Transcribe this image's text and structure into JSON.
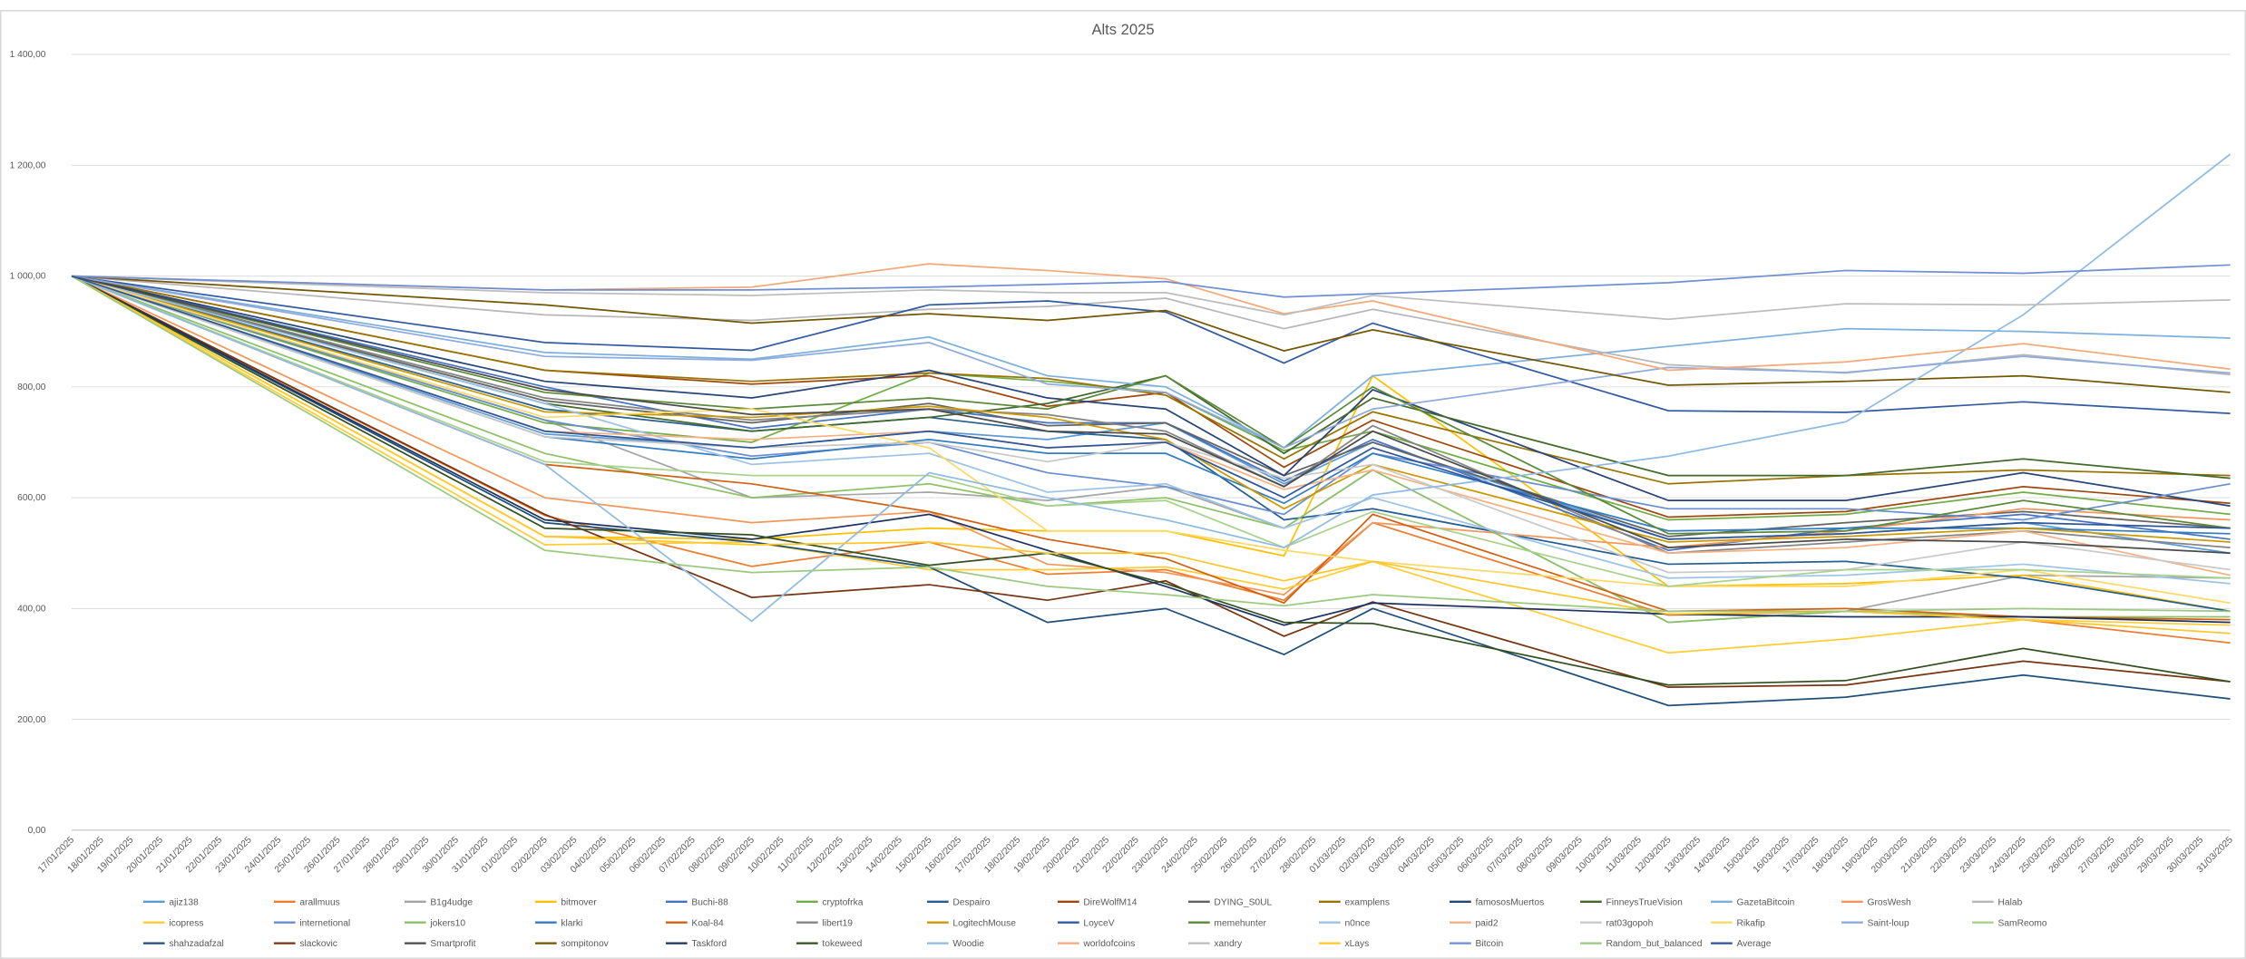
{
  "chart_data": {
    "type": "line",
    "title": "Alts 2025",
    "categories": [
      "17/01/2025",
      "18/01/2025",
      "19/01/2025",
      "20/01/2025",
      "21/01/2025",
      "22/01/2025",
      "23/01/2025",
      "24/01/2025",
      "25/01/2025",
      "26/01/2025",
      "27/01/2025",
      "28/01/2025",
      "29/01/2025",
      "30/01/2025",
      "31/01/2025",
      "01/02/2025",
      "02/02/2025",
      "03/02/2025",
      "04/02/2025",
      "05/02/2025",
      "06/02/2025",
      "07/02/2025",
      "08/02/2025",
      "09/02/2025",
      "10/02/2025",
      "11/02/2025",
      "12/02/2025",
      "13/02/2025",
      "14/02/2025",
      "15/02/2025",
      "16/02/2025",
      "17/02/2025",
      "18/02/2025",
      "19/02/2025",
      "20/02/2025",
      "21/02/2025",
      "22/02/2025",
      "23/02/2025",
      "24/02/2025",
      "25/02/2025",
      "26/02/2025",
      "27/02/2025",
      "28/02/2025",
      "01/03/2025",
      "02/03/2025",
      "03/03/2025",
      "04/03/2025",
      "05/03/2025",
      "06/03/2025",
      "07/03/2025",
      "08/03/2025",
      "09/03/2025",
      "10/03/2025",
      "11/03/2025",
      "12/03/2025",
      "13/03/2025",
      "14/03/2025",
      "15/03/2025",
      "16/03/2025",
      "17/03/2025",
      "18/03/2025",
      "19/03/2025",
      "20/03/2025",
      "21/03/2025",
      "22/03/2025",
      "23/03/2025",
      "24/03/2025",
      "25/03/2025",
      "26/03/2025",
      "27/03/2025",
      "28/03/2025",
      "29/03/2025",
      "30/03/2025",
      "31/03/2025"
    ],
    "x": [
      "17/01/2025",
      "02/02/2025",
      "09/02/2025",
      "15/02/2025",
      "19/02/2025",
      "23/02/2025",
      "27/02/2025",
      "02/03/2025",
      "12/03/2025",
      "18/03/2025",
      "24/03/2025",
      "31/03/2025"
    ],
    "ylim": [
      0,
      1400
    ],
    "yticks": [
      {
        "value": 0,
        "label": "0,00"
      },
      {
        "value": 200,
        "label": "200,00"
      },
      {
        "value": 400,
        "label": "400,00"
      },
      {
        "value": 600,
        "label": "600,00"
      },
      {
        "value": 800,
        "label": "800,00"
      },
      {
        "value": 1000,
        "label": "1 000,00"
      },
      {
        "value": 1200,
        "label": "1 200,00"
      },
      {
        "value": 1400,
        "label": "1 400,00"
      }
    ],
    "grid": true,
    "legend": "bottom",
    "series": [
      {
        "name": "ajiz138",
        "color": "#5b9bd5",
        "values": [
          1000,
          715,
          690,
          720,
          705,
          735,
          625,
          700,
          525,
          535,
          555,
          500
        ]
      },
      {
        "name": "arallmuus",
        "color": "#ed7d31",
        "values": [
          1000,
          568,
          476,
          520,
          462,
          470,
          415,
          555,
          388,
          395,
          380,
          338
        ]
      },
      {
        "name": "B1g4udge",
        "color": "#a5a5a5",
        "values": [
          1000,
          740,
          600,
          610,
          595,
          620,
          545,
          650,
          375,
          395,
          460,
          455
        ]
      },
      {
        "name": "bitmover",
        "color": "#ffc000",
        "values": [
          1000,
          530,
          525,
          545,
          540,
          540,
          495,
          820,
          440,
          445,
          460,
          395
        ]
      },
      {
        "name": "Buchi-88",
        "color": "#4472c4",
        "values": [
          1000,
          800,
          725,
          760,
          735,
          735,
          630,
          705,
          505,
          545,
          570,
          525
        ]
      },
      {
        "name": "cryptofrka",
        "color": "#70ad47",
        "values": [
          1000,
          735,
          700,
          825,
          810,
          790,
          685,
          720,
          560,
          570,
          610,
          570
        ]
      },
      {
        "name": "Despairo",
        "color": "#255e91",
        "values": [
          1000,
          760,
          720,
          745,
          720,
          705,
          560,
          580,
          480,
          485,
          455,
          395
        ]
      },
      {
        "name": "DireWolfM14",
        "color": "#9e480e",
        "values": [
          1000,
          830,
          805,
          820,
          765,
          790,
          655,
          740,
          565,
          575,
          620,
          590
        ]
      },
      {
        "name": "DYING_S0UL",
        "color": "#636363",
        "values": [
          1000,
          775,
          735,
          770,
          730,
          735,
          640,
          700,
          530,
          555,
          575,
          545
        ]
      },
      {
        "name": "examplens",
        "color": "#997300",
        "values": [
          1000,
          830,
          810,
          825,
          815,
          785,
          670,
          755,
          625,
          640,
          650,
          640
        ]
      },
      {
        "name": "famososMuertos",
        "color": "#264478",
        "values": [
          1000,
          810,
          780,
          830,
          780,
          760,
          640,
          795,
          595,
          595,
          645,
          585
        ]
      },
      {
        "name": "FinneysTrueVision",
        "color": "#43682b",
        "values": [
          1000,
          770,
          720,
          745,
          770,
          820,
          680,
          780,
          640,
          640,
          670,
          635
        ]
      },
      {
        "name": "GazetaBitcoin",
        "color": "#7cafdd",
        "values": [
          1000,
          862,
          850,
          890,
          820,
          800,
          690,
          820,
          873,
          905,
          900,
          888
        ]
      },
      {
        "name": "GrosWesh",
        "color": "#f1975a",
        "values": [
          1000,
          600,
          555,
          575,
          480,
          465,
          425,
          555,
          510,
          540,
          580,
          560
        ]
      },
      {
        "name": "Halab",
        "color": "#b7b7b7",
        "values": [
          1000,
          930,
          920,
          940,
          945,
          960,
          905,
          940,
          840,
          825,
          858,
          822
        ]
      },
      {
        "name": "icopress",
        "color": "#ffcd33",
        "values": [
          1000,
          515,
          520,
          470,
          470,
          475,
          435,
          485,
          320,
          345,
          380,
          370
        ]
      },
      {
        "name": "internetional",
        "color": "#698ed0",
        "values": [
          1000,
          740,
          675,
          700,
          645,
          620,
          570,
          680,
          580,
          580,
          560,
          625
        ]
      },
      {
        "name": "jokers10",
        "color": "#8cc168",
        "values": [
          1000,
          680,
          600,
          625,
          585,
          600,
          545,
          650,
          375,
          395,
          385,
          385
        ]
      },
      {
        "name": "klarki",
        "color": "#327dc2",
        "values": [
          1000,
          710,
          670,
          705,
          680,
          680,
          590,
          680,
          540,
          545,
          545,
          535
        ]
      },
      {
        "name": "Koal-84",
        "color": "#d26012",
        "values": [
          1000,
          660,
          625,
          575,
          525,
          490,
          410,
          570,
          395,
          400,
          385,
          380
        ]
      },
      {
        "name": "libert19",
        "color": "#848484",
        "values": [
          1000,
          780,
          740,
          760,
          750,
          720,
          620,
          730,
          500,
          520,
          540,
          510
        ]
      },
      {
        "name": "LogitechMouse",
        "color": "#cc9a00",
        "values": [
          1000,
          755,
          745,
          765,
          745,
          705,
          580,
          660,
          520,
          530,
          545,
          520
        ]
      },
      {
        "name": "LoyceV",
        "color": "#335aa1",
        "values": [
          1000,
          880,
          866,
          948,
          955,
          935,
          843,
          915,
          757,
          754,
          773,
          752
        ]
      },
      {
        "name": "memehunter",
        "color": "#5a8a39",
        "values": [
          1000,
          790,
          760,
          780,
          760,
          820,
          690,
          800,
          535,
          540,
          595,
          545
        ]
      },
      {
        "name": "n0nce",
        "color": "#9dc3e6",
        "values": [
          1000,
          770,
          660,
          680,
          610,
          625,
          545,
          600,
          455,
          460,
          480,
          445
        ]
      },
      {
        "name": "paid2",
        "color": "#f4b183",
        "values": [
          1000,
          720,
          705,
          720,
          690,
          700,
          615,
          650,
          500,
          510,
          540,
          460
        ]
      },
      {
        "name": "rat03gopoh",
        "color": "#c9c9c9",
        "values": [
          1000,
          710,
          690,
          700,
          665,
          700,
          635,
          660,
          465,
          470,
          520,
          470
        ]
      },
      {
        "name": "Rikafip",
        "color": "#ffd966",
        "values": [
          1000,
          745,
          760,
          690,
          540,
          540,
          505,
          485,
          440,
          440,
          470,
          410
        ]
      },
      {
        "name": "Saint-loup",
        "color": "#8faadc",
        "values": [
          1000,
          855,
          848,
          880,
          805,
          790,
          690,
          760,
          835,
          826,
          855,
          825
        ]
      },
      {
        "name": "SamReomo",
        "color": "#a9d18e",
        "values": [
          1000,
          665,
          640,
          640,
          585,
          595,
          510,
          575,
          440,
          470,
          470,
          455
        ]
      },
      {
        "name": "shahzadafzal",
        "color": "#1e4e79",
        "values": [
          1000,
          555,
          520,
          475,
          375,
          400,
          317,
          400,
          225,
          240,
          280,
          237
        ]
      },
      {
        "name": "slackovic",
        "color": "#763410",
        "values": [
          1000,
          570,
          420,
          443,
          415,
          450,
          350,
          412,
          258,
          262,
          305,
          268
        ]
      },
      {
        "name": "Smartprofit",
        "color": "#4b4b4b",
        "values": [
          1000,
          795,
          750,
          760,
          720,
          715,
          620,
          720,
          510,
          525,
          520,
          500
        ]
      },
      {
        "name": "sompitonov",
        "color": "#735600",
        "values": [
          1000,
          948,
          915,
          932,
          920,
          938,
          865,
          903,
          803,
          810,
          820,
          790
        ]
      },
      {
        "name": "Taskford",
        "color": "#1c3361",
        "values": [
          1000,
          560,
          525,
          570,
          505,
          440,
          370,
          410,
          390,
          385,
          385,
          375
        ]
      },
      {
        "name": "tokeweed",
        "color": "#32501f",
        "values": [
          1000,
          545,
          533,
          478,
          500,
          445,
          375,
          373,
          262,
          270,
          328,
          268
        ]
      },
      {
        "name": "Woodie",
        "color": "#8fbbe3",
        "values": [
          1000,
          660,
          377,
          645,
          600,
          560,
          510,
          605,
          675,
          737,
          930,
          1220
        ]
      },
      {
        "name": "worldofcoins",
        "color": "#f3a97a",
        "values": [
          1000,
          975,
          980,
          1022,
          1010,
          995,
          932,
          955,
          830,
          845,
          878,
          832
        ]
      },
      {
        "name": "xandry",
        "color": "#bdbdbd",
        "values": [
          1000,
          970,
          965,
          975,
          970,
          970,
          930,
          965,
          922,
          950,
          948,
          957
        ]
      },
      {
        "name": "xLays",
        "color": "#ffc72a",
        "values": [
          1000,
          530,
          515,
          520,
          500,
          500,
          450,
          485,
          390,
          395,
          380,
          355
        ]
      },
      {
        "name": "Bitcoin",
        "color": "#6f8fd4",
        "values": [
          1000,
          975,
          975,
          980,
          985,
          990,
          962,
          968,
          988,
          1010,
          1005,
          1020
        ]
      },
      {
        "name": "Random_but_balanced",
        "color": "#9bc97f",
        "values": [
          1000,
          505,
          465,
          475,
          440,
          425,
          405,
          425,
          395,
          395,
          400,
          395
        ]
      },
      {
        "name": "Average",
        "color": "#2f5597",
        "values": [
          1000,
          720,
          690,
          720,
          690,
          700,
          600,
          690,
          525,
          535,
          555,
          545
        ]
      }
    ]
  }
}
